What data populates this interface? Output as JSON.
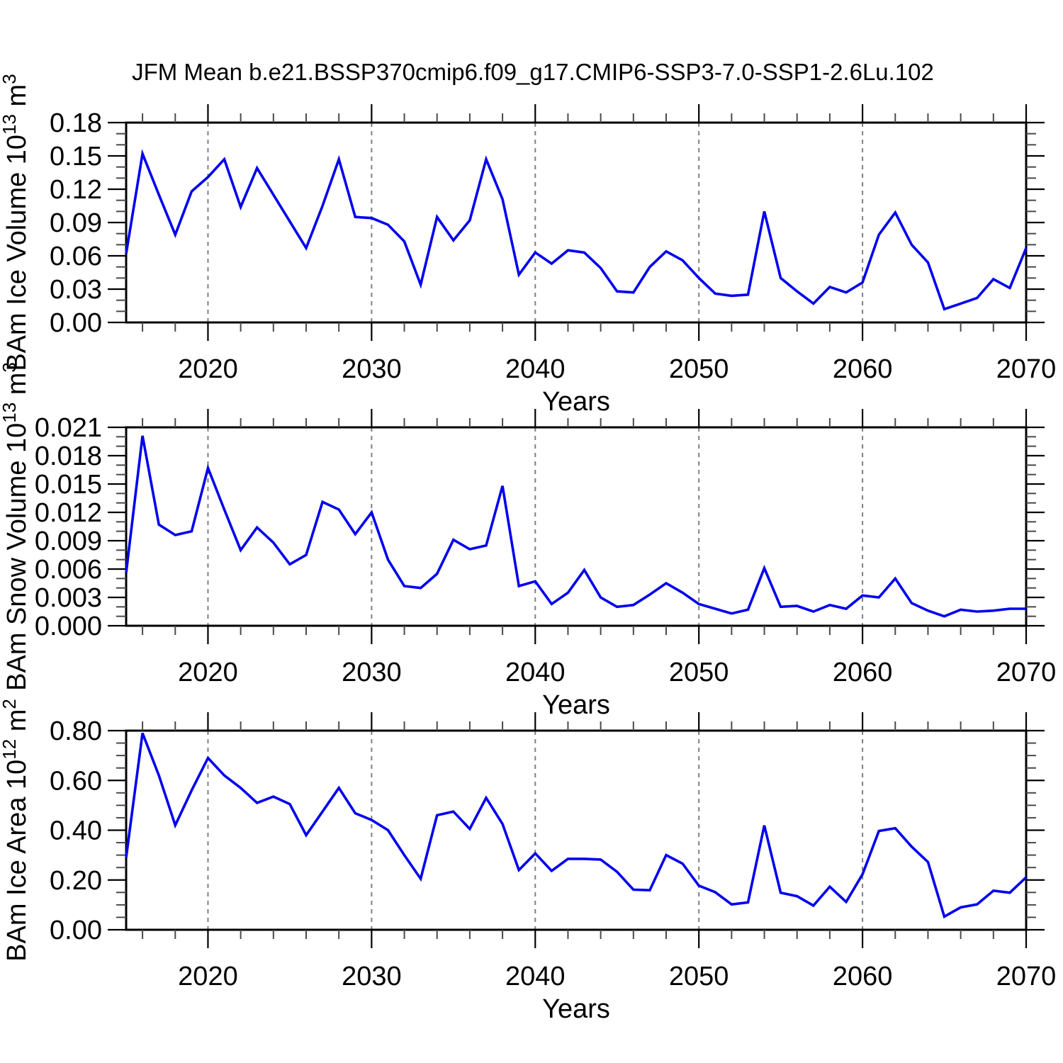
{
  "title": "JFM Mean b.e21.BSSP370cmip6.f09_g17.CMIP6-SSP3-7.0-SSP1-2.6Lu.102",
  "colors": {
    "line": "#0000EE",
    "grid": "#808080",
    "frame": "#000000"
  },
  "x_axis": {
    "label": "Years",
    "min": 2015,
    "max": 2070,
    "major_ticks": [
      2020,
      2030,
      2040,
      2050,
      2060,
      2070
    ],
    "minor_tick_step": 2,
    "dashed_grid_years": [
      2020,
      2030,
      2040,
      2050,
      2060
    ]
  },
  "years": [
    2015,
    2016,
    2017,
    2018,
    2019,
    2020,
    2021,
    2022,
    2023,
    2024,
    2025,
    2026,
    2027,
    2028,
    2029,
    2030,
    2031,
    2032,
    2033,
    2034,
    2035,
    2036,
    2037,
    2038,
    2039,
    2040,
    2041,
    2042,
    2043,
    2044,
    2045,
    2046,
    2047,
    2048,
    2049,
    2050,
    2051,
    2052,
    2053,
    2054,
    2055,
    2056,
    2057,
    2058,
    2059,
    2060,
    2061,
    2062,
    2063,
    2064,
    2065,
    2066,
    2067,
    2068,
    2069,
    2070
  ],
  "chart_data": [
    {
      "type": "line",
      "id": "ice-volume",
      "ylabel": "BAm Ice Volume 10^13 m^3",
      "ylabel_parts": [
        [
          "t",
          "BAm Ice Volume 10"
        ],
        [
          "s",
          "13"
        ],
        [
          "t",
          " m"
        ],
        [
          "s",
          "3"
        ]
      ],
      "xlabel": "Years",
      "ylim": [
        0,
        0.18
      ],
      "y_major_step": 0.03,
      "y_minor_step": 0.01,
      "y_decimals": 2,
      "grid": "dashed-vertical",
      "legend": "none",
      "values": [
        0.062,
        0.152,
        0.115,
        0.079,
        0.118,
        0.131,
        0.147,
        0.104,
        0.139,
        0.115,
        0.091,
        0.067,
        0.105,
        0.147,
        0.095,
        0.094,
        0.088,
        0.073,
        0.034,
        0.095,
        0.074,
        0.092,
        0.147,
        0.111,
        0.043,
        0.063,
        0.053,
        0.065,
        0.063,
        0.049,
        0.028,
        0.027,
        0.05,
        0.064,
        0.056,
        0.04,
        0.026,
        0.024,
        0.025,
        0.1,
        0.04,
        0.028,
        0.017,
        0.032,
        0.027,
        0.036,
        0.079,
        0.099,
        0.07,
        0.054,
        0.012,
        0.017,
        0.022,
        0.039,
        0.031,
        0.067
      ]
    },
    {
      "type": "line",
      "id": "snow-volume",
      "ylabel": "BAm Snow Volume 10^13 m^3",
      "ylabel_parts": [
        [
          "t",
          "BAm Snow Volume 10"
        ],
        [
          "s",
          "13"
        ],
        [
          "t",
          " m"
        ],
        [
          "s",
          "3"
        ]
      ],
      "xlabel": "Years",
      "ylim": [
        0,
        0.021
      ],
      "y_major_step": 0.003,
      "y_minor_step": 0.001,
      "y_decimals": 3,
      "grid": "dashed-vertical",
      "legend": "none",
      "values": [
        0.0056,
        0.0201,
        0.0107,
        0.0096,
        0.01,
        0.0167,
        0.0123,
        0.008,
        0.0104,
        0.0088,
        0.0065,
        0.0075,
        0.0131,
        0.0123,
        0.0097,
        0.012,
        0.007,
        0.0042,
        0.004,
        0.0055,
        0.0091,
        0.0081,
        0.0085,
        0.0148,
        0.0042,
        0.0047,
        0.0023,
        0.0035,
        0.0059,
        0.003,
        0.002,
        0.0022,
        0.0033,
        0.0045,
        0.0035,
        0.0023,
        0.0018,
        0.0013,
        0.0017,
        0.0061,
        0.002,
        0.0021,
        0.0015,
        0.0022,
        0.0018,
        0.0032,
        0.003,
        0.005,
        0.0024,
        0.0016,
        0.001,
        0.0017,
        0.0015,
        0.0016,
        0.0018,
        0.0018
      ]
    },
    {
      "type": "line",
      "id": "ice-area",
      "ylabel": "BAm Ice Area 10^12 m^2",
      "ylabel_parts": [
        [
          "t",
          "BAm Ice Area 10"
        ],
        [
          "s",
          "12"
        ],
        [
          "t",
          " m"
        ],
        [
          "s",
          "2"
        ]
      ],
      "xlabel": "Years",
      "ylim": [
        0,
        0.8
      ],
      "y_major_step": 0.2,
      "y_minor_step": 0.05,
      "y_decimals": 2,
      "grid": "dashed-vertical",
      "legend": "none",
      "values": [
        0.29,
        0.79,
        0.62,
        0.42,
        0.56,
        0.69,
        0.62,
        0.57,
        0.51,
        0.535,
        0.505,
        0.38,
        0.475,
        0.57,
        0.468,
        0.441,
        0.4,
        0.3,
        0.205,
        0.46,
        0.475,
        0.405,
        0.53,
        0.425,
        0.24,
        0.307,
        0.237,
        0.285,
        0.285,
        0.282,
        0.233,
        0.161,
        0.159,
        0.3,
        0.266,
        0.177,
        0.151,
        0.102,
        0.11,
        0.419,
        0.149,
        0.135,
        0.097,
        0.173,
        0.112,
        0.223,
        0.397,
        0.408,
        0.334,
        0.272,
        0.053,
        0.09,
        0.102,
        0.157,
        0.149,
        0.211
      ]
    }
  ]
}
